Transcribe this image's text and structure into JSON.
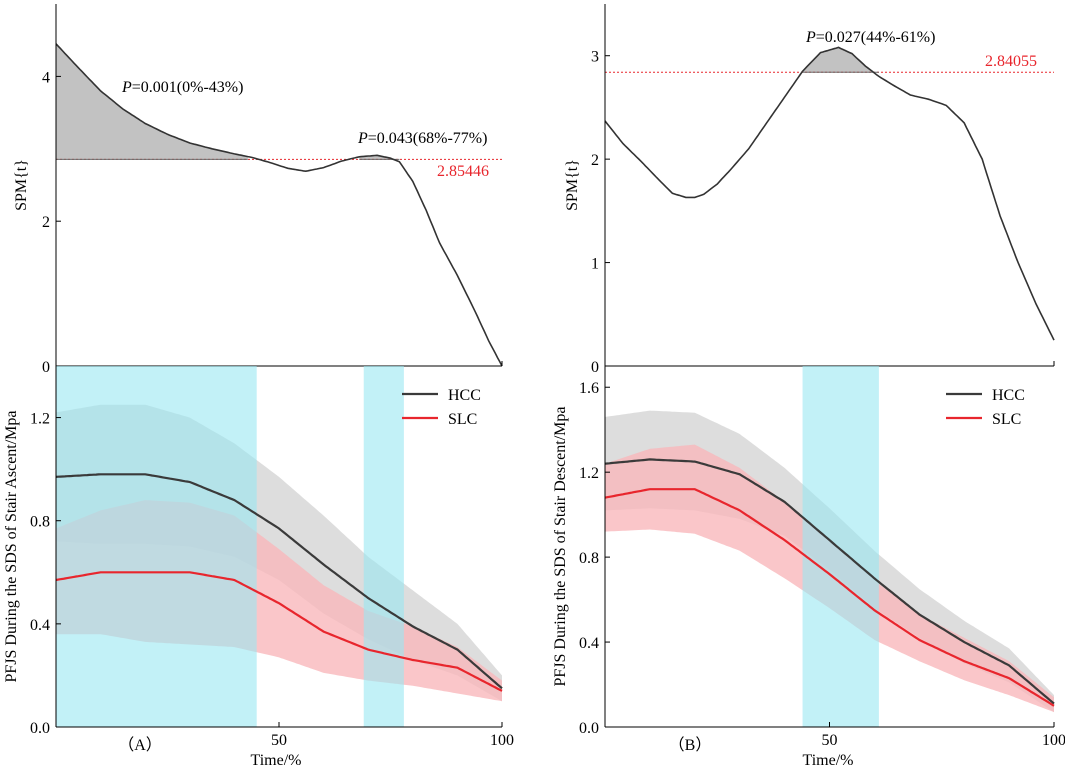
{
  "colors": {
    "hcc": "#3a3a3a",
    "slc": "#e8262d",
    "hcc_band": "#d4d4d4",
    "slc_band": "#f9b6ba",
    "significance": "#9ae8f2",
    "threshold": "#e8262d",
    "spm_fill": "#c2c2c2",
    "axis": "#000000"
  },
  "labels": {
    "panel_a": "（A）",
    "panel_b": "（B）",
    "xlabel_a": "Time/%",
    "xlabel_b": "Time/%"
  },
  "chart_data": [
    {
      "id": "spm_a",
      "type": "line",
      "title": "",
      "ylabel": "SPM{t}",
      "xlim": [
        0,
        100
      ],
      "ylim": [
        0,
        5
      ],
      "yticks": [
        0,
        2,
        4
      ],
      "xticks": [],
      "threshold": 2.85446,
      "threshold_label": "2.85446",
      "x": [
        0,
        5,
        10,
        15,
        20,
        25,
        30,
        35,
        40,
        44,
        48,
        52,
        56,
        60,
        64,
        68,
        72,
        75,
        77,
        80,
        83,
        86,
        90,
        94,
        97,
        100
      ],
      "y": [
        4.45,
        4.12,
        3.8,
        3.55,
        3.35,
        3.2,
        3.08,
        3.0,
        2.93,
        2.88,
        2.81,
        2.73,
        2.69,
        2.74,
        2.83,
        2.89,
        2.91,
        2.87,
        2.82,
        2.55,
        2.15,
        1.7,
        1.25,
        0.75,
        0.35,
        0.0
      ],
      "clusters": [
        {
          "start": 0,
          "end": 43,
          "label_prefix": "P",
          "label_rest": "=0.001(0%-43%)"
        },
        {
          "start": 68,
          "end": 77,
          "label_prefix": "P",
          "label_rest": "=0.043(68%-77%)"
        }
      ]
    },
    {
      "id": "spm_b",
      "type": "line",
      "title": "",
      "ylabel": "SPM{t}",
      "xlim": [
        0,
        100
      ],
      "ylim": [
        0,
        3.5
      ],
      "yticks": [
        0,
        1,
        2,
        3
      ],
      "xticks": [],
      "threshold": 2.84055,
      "threshold_label": "2.84055",
      "x": [
        0,
        4,
        8,
        12,
        15,
        18,
        20,
        22,
        25,
        28,
        32,
        36,
        40,
        44,
        48,
        52,
        55,
        58,
        61,
        64,
        68,
        72,
        76,
        80,
        84,
        88,
        92,
        96,
        100
      ],
      "y": [
        2.37,
        2.15,
        1.98,
        1.8,
        1.67,
        1.63,
        1.63,
        1.66,
        1.76,
        1.9,
        2.1,
        2.35,
        2.6,
        2.85,
        3.03,
        3.08,
        3.02,
        2.9,
        2.8,
        2.72,
        2.62,
        2.58,
        2.52,
        2.35,
        2.0,
        1.45,
        1.0,
        0.6,
        0.25
      ],
      "clusters": [
        {
          "start": 44,
          "end": 61,
          "label_prefix": "P",
          "label_rest": "=0.027(44%-61%)"
        }
      ]
    },
    {
      "id": "pfjs_ascent",
      "type": "line",
      "title": "",
      "xlabel": "Time/%",
      "ylabel": "PFJS During the SDS of Stair Ascent/Mpa",
      "xlim": [
        0,
        100
      ],
      "ylim": [
        0,
        1.4
      ],
      "yticks": [
        0.0,
        0.4,
        0.8,
        1.2
      ],
      "xticks": [
        50,
        100
      ],
      "legend": {
        "position": "top-right",
        "entries": [
          "HCC",
          "SLC"
        ]
      },
      "significant_regions": [
        [
          0,
          45
        ],
        [
          69,
          78
        ]
      ],
      "x": [
        0,
        10,
        20,
        30,
        40,
        50,
        60,
        70,
        80,
        90,
        100
      ],
      "series": [
        {
          "name": "HCC",
          "mean": [
            0.97,
            0.98,
            0.98,
            0.95,
            0.88,
            0.77,
            0.63,
            0.5,
            0.39,
            0.3,
            0.15
          ],
          "upper": [
            1.22,
            1.25,
            1.25,
            1.2,
            1.1,
            0.97,
            0.82,
            0.66,
            0.53,
            0.4,
            0.2
          ],
          "lower": [
            0.72,
            0.71,
            0.71,
            0.7,
            0.66,
            0.57,
            0.44,
            0.34,
            0.26,
            0.2,
            0.1
          ]
        },
        {
          "name": "SLC",
          "mean": [
            0.57,
            0.6,
            0.6,
            0.6,
            0.57,
            0.48,
            0.37,
            0.3,
            0.26,
            0.23,
            0.14
          ],
          "upper": [
            0.77,
            0.84,
            0.88,
            0.87,
            0.82,
            0.69,
            0.55,
            0.45,
            0.39,
            0.31,
            0.18
          ],
          "lower": [
            0.36,
            0.36,
            0.33,
            0.32,
            0.31,
            0.27,
            0.21,
            0.18,
            0.16,
            0.13,
            0.1
          ]
        }
      ]
    },
    {
      "id": "pfjs_descent",
      "type": "line",
      "title": "",
      "xlabel": "Time/%",
      "ylabel": "PFJS During the SDS of Stair Descent/Mpa",
      "xlim": [
        0,
        100
      ],
      "ylim": [
        0,
        1.7
      ],
      "yticks": [
        0.0,
        0.4,
        0.8,
        1.2,
        1.6
      ],
      "xticks": [
        50,
        100
      ],
      "legend": {
        "position": "top-right",
        "entries": [
          "HCC",
          "SLC"
        ]
      },
      "significant_regions": [
        [
          44,
          61
        ]
      ],
      "x": [
        0,
        10,
        20,
        30,
        40,
        50,
        60,
        70,
        80,
        90,
        100
      ],
      "series": [
        {
          "name": "HCC",
          "mean": [
            1.24,
            1.26,
            1.25,
            1.19,
            1.06,
            0.88,
            0.7,
            0.53,
            0.4,
            0.29,
            0.11
          ],
          "upper": [
            1.46,
            1.49,
            1.48,
            1.38,
            1.22,
            1.03,
            0.83,
            0.65,
            0.5,
            0.37,
            0.15
          ],
          "lower": [
            1.02,
            1.03,
            1.02,
            0.98,
            0.9,
            0.74,
            0.56,
            0.42,
            0.3,
            0.21,
            0.07
          ]
        },
        {
          "name": "SLC",
          "mean": [
            1.08,
            1.12,
            1.12,
            1.02,
            0.88,
            0.72,
            0.55,
            0.41,
            0.31,
            0.23,
            0.1
          ],
          "upper": [
            1.24,
            1.31,
            1.33,
            1.22,
            1.06,
            0.88,
            0.69,
            0.53,
            0.42,
            0.31,
            0.14
          ],
          "lower": [
            0.92,
            0.93,
            0.91,
            0.83,
            0.7,
            0.56,
            0.41,
            0.31,
            0.22,
            0.15,
            0.07
          ]
        }
      ]
    }
  ]
}
